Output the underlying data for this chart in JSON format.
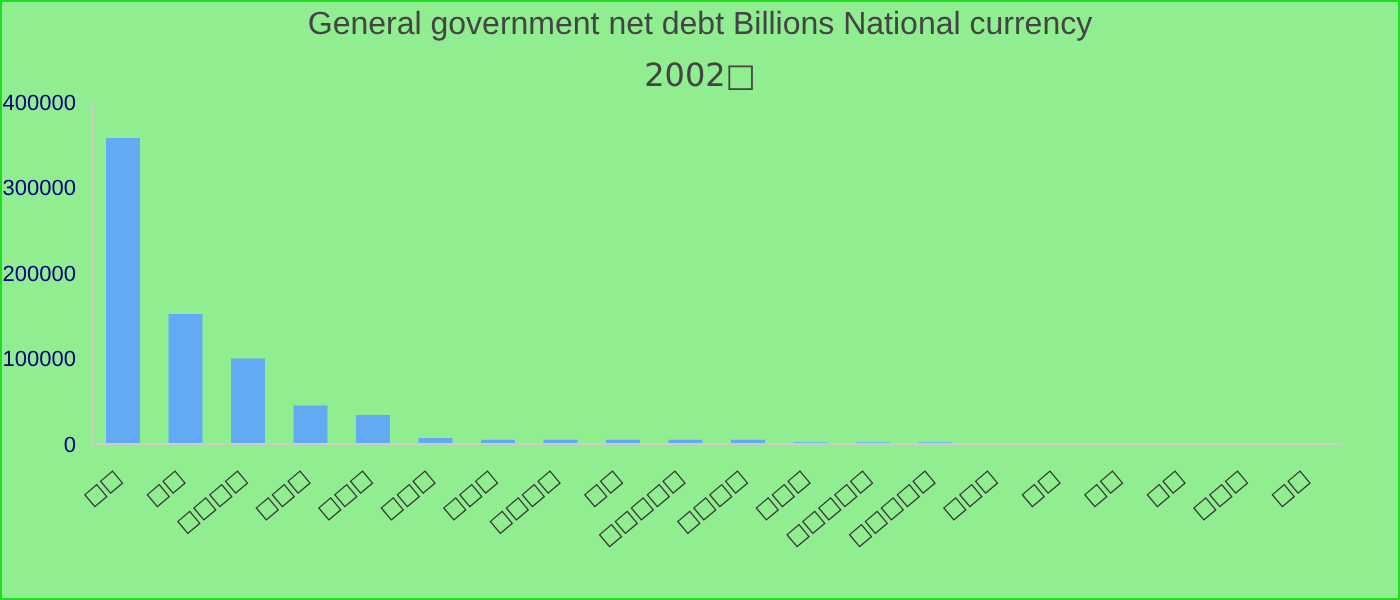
{
  "chart_data": {
    "type": "bar",
    "title": "General government net debt Billions National currency",
    "subtitle": "2002□",
    "categories": [
      "□□",
      "□□",
      "□□□□",
      "□□□",
      "□□□",
      "□□□",
      "□□□",
      "□□□□",
      "□□",
      "□□□□□",
      "□□□□",
      "□□□",
      "□□□□□",
      "□□□□□",
      "□□□",
      "□□",
      "□□",
      "□□",
      "□□□",
      "□□"
    ],
    "values": [
      358000,
      152000,
      100000,
      45000,
      34000,
      7000,
      5000,
      5000,
      5000,
      5000,
      5000,
      2000,
      2000,
      2000,
      0,
      0,
      0,
      0,
      0,
      0
    ],
    "color": "#63aaf5",
    "ylim": [
      0,
      400000
    ],
    "yticks": [
      0,
      100000,
      200000,
      300000,
      400000
    ]
  }
}
